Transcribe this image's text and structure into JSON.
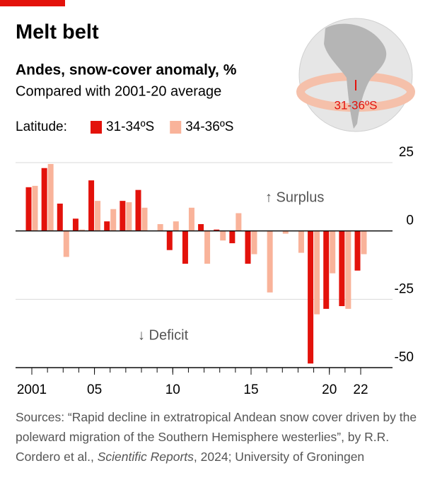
{
  "chart_data": {
    "type": "bar",
    "title": "Melt belt",
    "subtitle": "Andes, snow-cover anomaly, %",
    "subtitle2": "Compared with 2001-20 average",
    "legend_title": "Latitude:",
    "globe_label": "31-36ºS",
    "annotations": [
      "↑ Surplus",
      "↓ Deficit"
    ],
    "x": [
      2001,
      2002,
      2003,
      2004,
      2005,
      2006,
      2007,
      2008,
      2009,
      2010,
      2011,
      2012,
      2013,
      2014,
      2015,
      2016,
      2017,
      2018,
      2019,
      2020,
      2021,
      2022
    ],
    "series": [
      {
        "name": "31-34ºS",
        "color": "#e3120b",
        "values": [
          16,
          23,
          10,
          4.5,
          18.5,
          3.5,
          11,
          15,
          0,
          -7,
          -12,
          2.5,
          0.5,
          -4.5,
          -12,
          0,
          0,
          0,
          -48.5,
          -28.5,
          -27.5,
          -14.5
        ]
      },
      {
        "name": "34-36ºS",
        "color": "#f9b39a",
        "values": [
          16.5,
          24.5,
          -9.5,
          0.5,
          11,
          8,
          10.5,
          8.5,
          2.5,
          3.5,
          8.5,
          -12,
          -3.5,
          6.5,
          -8.5,
          -22.5,
          -1,
          -8,
          -30.5,
          -15.5,
          -28.5,
          -8.5
        ]
      }
    ],
    "ylim": [
      -50,
      25
    ],
    "yticks": [
      -50,
      -25,
      0,
      25
    ],
    "xlim": [
      2000,
      2023.5
    ],
    "xticks": [
      {
        "value": 2001,
        "label": "2001"
      },
      {
        "value": 2005,
        "label": "05"
      },
      {
        "value": 2010,
        "label": "10"
      },
      {
        "value": 2015,
        "label": "15"
      },
      {
        "value": 2020,
        "label": "20"
      },
      {
        "value": 2022,
        "label": "22"
      }
    ],
    "grid": true,
    "source": [
      "Sources: “Rapid decline in extratropical Andean snow cover driven by the poleward migration of the Southern Hemisphere westerlies”, by R.R. Cordero et al., ",
      "Scientific Reports",
      ", 2024; University of Groningen"
    ]
  }
}
